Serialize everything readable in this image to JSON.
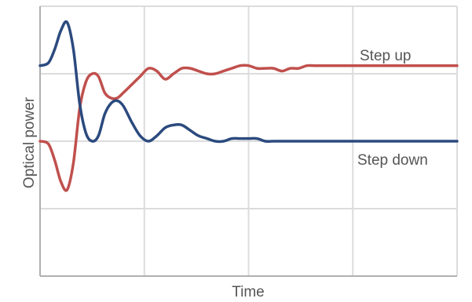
{
  "chart_data": {
    "type": "line",
    "xlabel": "Time",
    "ylabel": "Optical power",
    "xlim": [
      0,
      1
    ],
    "ylim": [
      0,
      1
    ],
    "grid": true,
    "colors": {
      "grid": "#dcdcdc",
      "axis": "#b0b0b0"
    },
    "series": [
      {
        "name": "Step up",
        "color": "#c0504d",
        "x": [
          0,
          0.02,
          0.035,
          0.05,
          0.065,
          0.08,
          0.095,
          0.11,
          0.125,
          0.14,
          0.155,
          0.17,
          0.185,
          0.2,
          0.22,
          0.24,
          0.26,
          0.28,
          0.3,
          0.32,
          0.34,
          0.36,
          0.38,
          0.4,
          0.42,
          0.44,
          0.46,
          0.48,
          0.5,
          0.52,
          0.54,
          0.56,
          0.58,
          0.6,
          0.62,
          0.64,
          0.66,
          0.68,
          0.7,
          0.72,
          0.74,
          0.76,
          0.78,
          0.8,
          0.82,
          0.84,
          0.86,
          0.88,
          0.9,
          0.92,
          0.94,
          0.96,
          0.98,
          1.0
        ],
        "y": [
          0.5,
          0.49,
          0.43,
          0.35,
          0.32,
          0.42,
          0.62,
          0.72,
          0.75,
          0.74,
          0.68,
          0.66,
          0.66,
          0.68,
          0.71,
          0.74,
          0.77,
          0.76,
          0.73,
          0.75,
          0.77,
          0.77,
          0.76,
          0.75,
          0.75,
          0.76,
          0.77,
          0.78,
          0.78,
          0.77,
          0.77,
          0.77,
          0.76,
          0.77,
          0.77,
          0.78,
          0.78,
          0.78,
          0.78,
          0.78,
          0.78,
          0.78,
          0.78,
          0.78,
          0.78,
          0.78,
          0.78,
          0.78,
          0.78,
          0.78,
          0.78,
          0.78,
          0.78,
          0.78
        ]
      },
      {
        "name": "Step down",
        "color": "#2b4a7e",
        "x": [
          0,
          0.02,
          0.035,
          0.05,
          0.065,
          0.08,
          0.095,
          0.11,
          0.125,
          0.14,
          0.155,
          0.17,
          0.185,
          0.2,
          0.22,
          0.24,
          0.26,
          0.28,
          0.3,
          0.32,
          0.34,
          0.36,
          0.38,
          0.4,
          0.42,
          0.44,
          0.46,
          0.48,
          0.5,
          0.52,
          0.54,
          0.56,
          0.58,
          0.6,
          0.62,
          0.64,
          0.66,
          0.68,
          0.7,
          0.72,
          0.74,
          0.76,
          0.78,
          0.8,
          0.82,
          0.84,
          0.86,
          0.88,
          0.9,
          0.92,
          0.94,
          0.96,
          0.98,
          1.0
        ],
        "y": [
          0.78,
          0.79,
          0.84,
          0.91,
          0.94,
          0.84,
          0.64,
          0.53,
          0.5,
          0.52,
          0.6,
          0.64,
          0.65,
          0.63,
          0.57,
          0.52,
          0.5,
          0.52,
          0.55,
          0.56,
          0.56,
          0.54,
          0.52,
          0.51,
          0.5,
          0.5,
          0.51,
          0.51,
          0.51,
          0.51,
          0.5,
          0.5,
          0.5,
          0.5,
          0.5,
          0.5,
          0.5,
          0.5,
          0.5,
          0.5,
          0.5,
          0.5,
          0.5,
          0.5,
          0.5,
          0.5,
          0.5,
          0.5,
          0.5,
          0.5,
          0.5,
          0.5,
          0.5,
          0.5
        ]
      }
    ]
  }
}
